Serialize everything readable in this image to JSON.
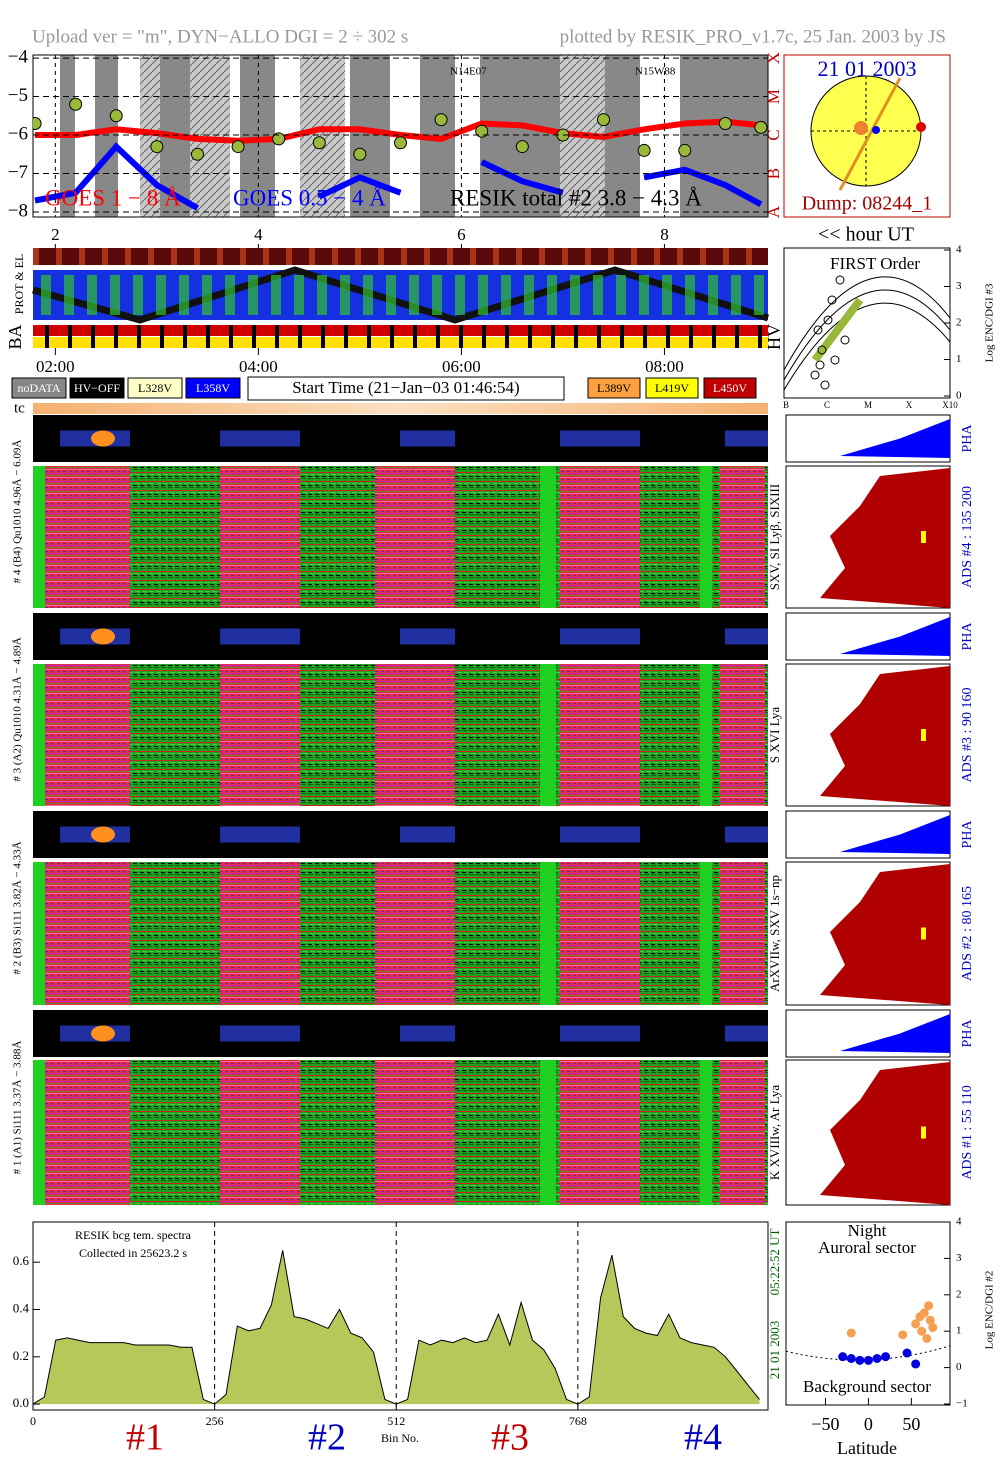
{
  "header": {
    "left": "Upload ver = \"m\", DYN−ALLO DGI =   2 ÷ 302 s",
    "right": "plotted by RESIK_PRO_v1.7c, 25 Jan. 2003 by JS"
  },
  "goes": {
    "xlim": [
      1.78,
      9.02
    ],
    "ylim": [
      -8.13,
      -3.92
    ],
    "yticks": [
      {
        "value": -4,
        "label": "−4"
      },
      {
        "value": -5,
        "label": "−5"
      },
      {
        "value": -6,
        "label": "−6"
      },
      {
        "value": -7,
        "label": "−7"
      },
      {
        "value": -8,
        "label": "−8"
      }
    ],
    "class_labels": [
      "X",
      "M",
      "C",
      "B",
      "A"
    ],
    "regions": [
      "N14E07",
      "N15W88"
    ],
    "x": [
      1.8,
      2.2,
      2.6,
      3.0,
      3.4,
      3.8,
      4.2,
      4.6,
      5.0,
      5.4,
      5.8,
      6.2,
      6.6,
      7.0,
      7.4,
      7.8,
      8.2,
      8.6,
      8.95
    ],
    "series": [
      {
        "name": "GOES 1 − 8 Å",
        "color": "#ff0000",
        "style": "line",
        "values": [
          -6.0,
          -6.0,
          -5.85,
          -5.95,
          -6.1,
          -6.15,
          -6.1,
          -5.85,
          -5.85,
          -6.0,
          -6.1,
          -5.7,
          -5.75,
          -5.95,
          -6.05,
          -5.85,
          -5.7,
          -5.65,
          -5.75
        ]
      },
      {
        "name": "GOES 0.5 − 4 Å",
        "color": "#0000ff",
        "style": "line",
        "values": [
          -7.7,
          -7.5,
          -6.3,
          -7.3,
          -7.9,
          null,
          null,
          -7.6,
          -7.1,
          -7.5,
          null,
          -6.7,
          -7.2,
          -7.5,
          null,
          -7.1,
          -6.9,
          -7.3,
          -7.8
        ]
      },
      {
        "name": "RESIK total #2  3.8 − 4.3 Å",
        "color": "#9ab83a",
        "style": "points",
        "values": [
          -5.7,
          -5.2,
          -5.5,
          -6.3,
          -6.5,
          -6.3,
          -6.1,
          -6.2,
          -6.5,
          -6.2,
          -5.6,
          -5.9,
          -6.3,
          -6.0,
          -5.6,
          -6.4,
          -6.4,
          -5.7,
          -5.8
        ]
      }
    ]
  },
  "sun": {
    "date": "21 01 2003",
    "dump": "Dump: 08244_1"
  },
  "hour_axis": {
    "label": "<< hour UT",
    "ticks": [
      2,
      4,
      6,
      8
    ]
  },
  "rows": {
    "prot_el": "PROT & EL",
    "ba": "BA",
    "hv": "HV"
  },
  "time_axis": {
    "ticks": [
      {
        "value": 2,
        "label": "02:00"
      },
      {
        "value": 4,
        "label": "04:00"
      },
      {
        "value": 6,
        "label": "06:00"
      },
      {
        "value": 8,
        "label": "08:00"
      }
    ]
  },
  "legend": {
    "left": [
      {
        "label": "noDATA",
        "color": "#888888"
      },
      {
        "label": "HV−OFF",
        "color": "#000000"
      },
      {
        "label": "L328V",
        "color": "#ffffc8"
      },
      {
        "label": "L358V",
        "color": "#0000ff"
      }
    ],
    "start_time": "Start Time (21−Jan−03 01:46:54)",
    "right": [
      {
        "label": "L389V",
        "color": "#ffa040"
      },
      {
        "label": "L419V",
        "color": "#ffff00"
      },
      {
        "label": "L450V",
        "color": "#c00000"
      }
    ]
  },
  "tc": "tc",
  "channels": [
    {
      "label": "# 4 (B4) Qu1010 4.96Å − 6.09Å",
      "lines": "SXV, SI Lyβ, SIXIII",
      "ads": "ADS #4 :  135 200",
      "pha": "PHA"
    },
    {
      "label": "# 3 (A2) Qu1010 4.31Å − 4.89Å",
      "lines": "S XVI Lya",
      "ads": "ADS #3 :  90 160",
      "pha": "PHA"
    },
    {
      "label": "# 2 (B3) Si111 3.82Å − 4.33Å",
      "lines": "ArXVIIw, SXV 1s−np",
      "ads": "ADS #2 :  80 165",
      "pha": "PHA"
    },
    {
      "label": "# 1 (A1) Si111 3.37Å − 3.88Å",
      "lines": "K XVIIIw, Ar Lya",
      "ads": "ADS #1 :  55 110",
      "pha": "PHA"
    }
  ],
  "first_order": {
    "title": "FIRST Order",
    "ylabel": "Log ENC/DGI #3",
    "ylim": [
      0,
      4
    ],
    "yticks": [
      0,
      1,
      2,
      3,
      4
    ],
    "xcategories": [
      "B",
      "C",
      "M",
      "X",
      "X10"
    ]
  },
  "spectrum": {
    "title": "RESIK bcg tem. spectra",
    "subtitle": "Collected in 25623.2 s",
    "xlabel": "Bin No.",
    "xlim": [
      0,
      1036
    ],
    "xticks": [
      0,
      256,
      512,
      768
    ],
    "ylim": [
      -0.025,
      0.77
    ],
    "yticks": [
      {
        "value": 0,
        "label": "0.0"
      },
      0.2,
      0.4,
      0.6
    ],
    "color": "#b5c85a",
    "x": [
      0,
      16,
      32,
      48,
      64,
      80,
      96,
      112,
      128,
      144,
      160,
      176,
      192,
      208,
      224,
      240,
      256,
      272,
      288,
      304,
      320,
      336,
      352,
      368,
      384,
      400,
      416,
      432,
      448,
      464,
      480,
      496,
      512,
      528,
      544,
      560,
      576,
      592,
      608,
      624,
      640,
      656,
      672,
      688,
      704,
      720,
      736,
      752,
      768,
      784,
      800,
      816,
      832,
      848,
      864,
      880,
      896,
      912,
      928,
      944,
      960,
      976,
      992,
      1008,
      1024
    ],
    "values": [
      0.0,
      0.03,
      0.27,
      0.28,
      0.27,
      0.26,
      0.26,
      0.26,
      0.26,
      0.25,
      0.25,
      0.25,
      0.25,
      0.24,
      0.24,
      0.02,
      0.0,
      0.04,
      0.33,
      0.31,
      0.32,
      0.42,
      0.65,
      0.37,
      0.36,
      0.34,
      0.32,
      0.4,
      0.3,
      0.28,
      0.22,
      0.02,
      0.0,
      0.02,
      0.27,
      0.25,
      0.27,
      0.26,
      0.28,
      0.26,
      0.27,
      0.38,
      0.25,
      0.43,
      0.27,
      0.23,
      0.15,
      0.02,
      0.0,
      0.03,
      0.45,
      0.63,
      0.37,
      0.32,
      0.3,
      0.29,
      0.38,
      0.28,
      0.26,
      0.25,
      0.24,
      0.2,
      0.14,
      0.08,
      0.02
    ],
    "date": "21 01 2003",
    "time": "05:22:52 UT",
    "sections": [
      {
        "label": "#1",
        "color": "#c00000"
      },
      {
        "label": "#2",
        "color": "#0000c0"
      },
      {
        "label": "#3",
        "color": "#c00000"
      },
      {
        "label": "#4",
        "color": "#0000c0"
      }
    ]
  },
  "latitude": {
    "title": "Night",
    "top": "Auroral sector",
    "bottom": "Background sector",
    "xlabel": "Latitude",
    "ylabel": "Log ENC/DGI #2",
    "xlim": [
      -96,
      95
    ],
    "xticks": [
      {
        "value": -50,
        "label": "−50"
      },
      0,
      50
    ],
    "ylim": [
      -1,
      4
    ],
    "yticks": [
      {
        "value": -1,
        "label": "−1"
      },
      0,
      1,
      2,
      3,
      4
    ],
    "series": [
      {
        "color": "#f4a050",
        "x": [
          -20,
          40,
          55,
          60,
          65,
          70,
          72,
          75,
          68,
          62
        ],
        "values": [
          0.95,
          0.9,
          1.2,
          1.4,
          1.5,
          1.7,
          1.3,
          1.1,
          0.8,
          1.0
        ]
      },
      {
        "color": "#0000e0",
        "x": [
          -30,
          -20,
          -10,
          0,
          10,
          20,
          45,
          55
        ],
        "values": [
          0.3,
          0.25,
          0.2,
          0.2,
          0.25,
          0.3,
          0.4,
          0.1
        ]
      }
    ]
  }
}
